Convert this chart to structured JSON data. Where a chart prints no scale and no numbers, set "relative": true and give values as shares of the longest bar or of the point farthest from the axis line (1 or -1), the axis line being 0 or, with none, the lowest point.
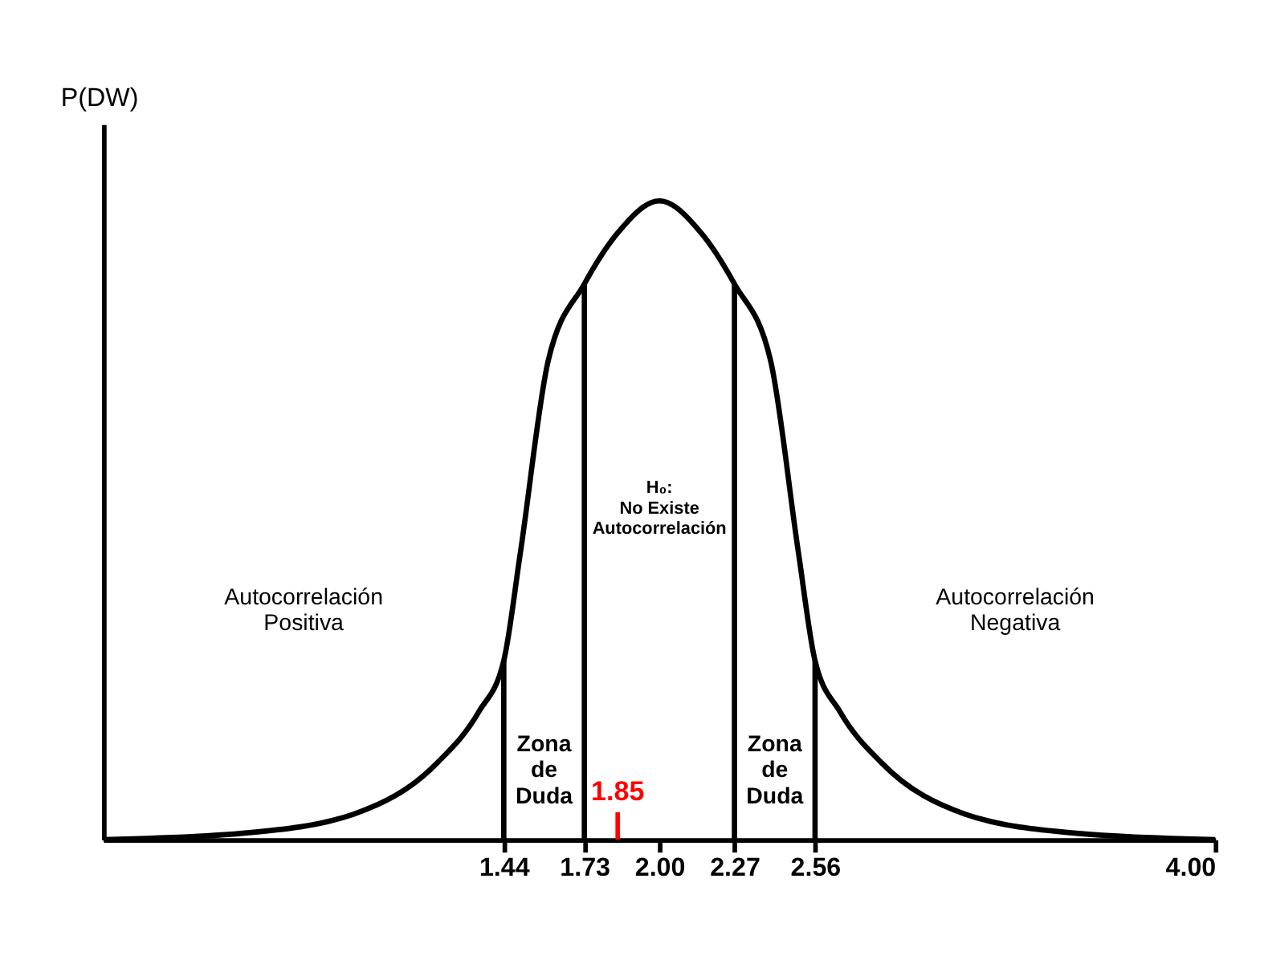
{
  "chart_data": {
    "type": "line",
    "relative": true,
    "ylabel": "P(DW)",
    "xlim": [
      0,
      4
    ],
    "xticks": [
      1.44,
      1.73,
      {
        "value": 2,
        "label": "2.00"
      },
      2.27,
      2.56,
      {
        "value": 4,
        "label": "4.00"
      }
    ],
    "series": [
      {
        "color": "#000000",
        "x": [
          0,
          0.5,
          0.9,
          1.2,
          1.35,
          1.44,
          1.5,
          1.6,
          1.73,
          1.85,
          2.0,
          2.15,
          2.27,
          2.4,
          2.5,
          2.56,
          2.65,
          2.8,
          3.1,
          3.5,
          4.0
        ],
        "values": [
          0,
          0.01,
          0.04,
          0.12,
          0.2,
          0.28,
          0.45,
          0.75,
          0.87,
          0.95,
          1,
          0.95,
          0.87,
          0.75,
          0.45,
          0.28,
          0.2,
          0.12,
          0.04,
          0.01,
          0
        ]
      }
    ],
    "ref_lines": [
      {
        "axis": "x",
        "value": 1.44
      },
      {
        "axis": "x",
        "value": 1.73
      },
      {
        "axis": "x",
        "value": 2.27
      },
      {
        "axis": "x",
        "value": 2.56
      },
      {
        "axis": "x",
        "value": 1.85,
        "label": "1.85",
        "color": "#ff0000"
      }
    ],
    "annotations": [
      "Autocorrelación\nPositiva",
      "Zona\nde\nDuda",
      "H₀:\nNo Existe\nAutocorrelación",
      "Zona\nde\nDuda",
      "Autocorrelación\nNegativa"
    ],
    "grid": false,
    "marker": "none",
    "line_style": "solid"
  }
}
